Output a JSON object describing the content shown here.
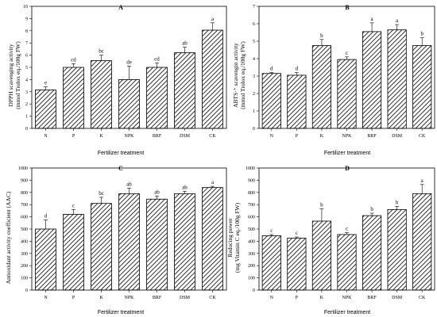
{
  "chart_data": [
    {
      "type": "bar",
      "panel": "A",
      "title": "A",
      "xlabel": "Fertilizer treatment",
      "ylabel": [
        "DPPH scavenging activity",
        "(mmol Trolox eq./100g FW)"
      ],
      "ylim": [
        0,
        10
      ],
      "yticks": [
        0,
        1,
        2,
        3,
        4,
        5,
        6,
        7,
        8,
        9,
        10
      ],
      "categories": [
        "N",
        "P",
        "K",
        "NPK",
        "BRF",
        "DSM",
        "CK"
      ],
      "values": [
        3.15,
        5.0,
        5.55,
        4.0,
        5.0,
        6.2,
        8.05
      ],
      "errors": [
        0.25,
        0.3,
        0.45,
        1.1,
        0.35,
        0.45,
        0.6
      ],
      "letters": [
        "e",
        "cd",
        "bc",
        "de",
        "cd",
        "ab",
        "a"
      ]
    },
    {
      "type": "bar",
      "panel": "B",
      "title": "B",
      "xlabel": "Fertilizer treatment",
      "ylabel": [
        "ABTS·⁺ scavengin activity",
        "(mmol Trolox eq./100g FW)"
      ],
      "ylim": [
        0,
        7
      ],
      "yticks": [
        0,
        1,
        2,
        3,
        4,
        5,
        6,
        7
      ],
      "categories": [
        "N",
        "P",
        "K",
        "NPK",
        "BRF",
        "DSM",
        "CK"
      ],
      "values": [
        3.15,
        3.05,
        4.75,
        3.95,
        5.55,
        5.65,
        4.75
      ],
      "errors": [
        0.05,
        0.15,
        0.35,
        0.15,
        0.5,
        0.3,
        0.45
      ],
      "letters": [
        "d",
        "d",
        "b",
        "c",
        "a",
        "a",
        "b"
      ]
    },
    {
      "type": "bar",
      "panel": "C",
      "title": "C",
      "xlabel": "Fertilizer treatment",
      "ylabel": [
        "Antioxidant activity coefficient (AAC)"
      ],
      "ylim": [
        0,
        1000
      ],
      "yticks": [
        0,
        100,
        200,
        300,
        400,
        500,
        600,
        700,
        800,
        900,
        1000
      ],
      "categories": [
        "N",
        "P",
        "K",
        "NPK",
        "BRF",
        "DSM",
        "CK"
      ],
      "values": [
        500,
        620,
        710,
        790,
        745,
        790,
        840
      ],
      "errors": [
        75,
        40,
        50,
        45,
        25,
        20,
        10
      ],
      "letters": [
        "d",
        "c",
        "bc",
        "ab",
        "ab",
        "ab",
        "a"
      ]
    },
    {
      "type": "bar",
      "panel": "D",
      "title": "D",
      "xlabel": "Fertilizer treatment",
      "ylabel": [
        "Reducing power",
        "(mg Vitamin C eq./100g FW)"
      ],
      "ylim": [
        0,
        1000
      ],
      "yticks": [
        0,
        100,
        200,
        300,
        400,
        500,
        600,
        700,
        800,
        900,
        1000
      ],
      "categories": [
        "N",
        "P",
        "K",
        "NPK",
        "BRF",
        "DSM",
        "CK"
      ],
      "values": [
        445,
        425,
        565,
        455,
        610,
        660,
        790
      ],
      "errors": [
        10,
        10,
        100,
        15,
        20,
        25,
        75
      ],
      "letters": [
        "c",
        "c",
        "b",
        "c",
        "b",
        "b",
        "a"
      ]
    }
  ]
}
